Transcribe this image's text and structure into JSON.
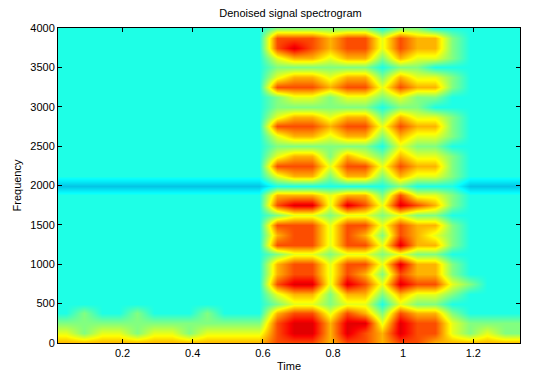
{
  "chart_data": {
    "type": "heatmap",
    "title": "Denoised signal spectrogram",
    "x_label": "Time",
    "y_label": "Frequency",
    "x": [
      0.04,
      0.09,
      0.14,
      0.19,
      0.24,
      0.29,
      0.34,
      0.39,
      0.44,
      0.49,
      0.54,
      0.59,
      0.64,
      0.69,
      0.74,
      0.79,
      0.84,
      0.89,
      0.94,
      0.99,
      1.04,
      1.09,
      1.14,
      1.19,
      1.24,
      1.29,
      1.34
    ],
    "y": [
      0,
      125,
      250,
      375,
      500,
      625,
      750,
      875,
      1000,
      1125,
      1250,
      1375,
      1500,
      1625,
      1750,
      1875,
      2000,
      2125,
      2250,
      2375,
      2500,
      2625,
      2750,
      2875,
      3000,
      3125,
      3250,
      3375,
      3500,
      3625,
      3750,
      3875,
      4000
    ],
    "z": [
      [
        7,
        7,
        7,
        7,
        7,
        7,
        7,
        7,
        7,
        7,
        7,
        7,
        8,
        8,
        8,
        7,
        8,
        8,
        7,
        8,
        8,
        7,
        7,
        7,
        7,
        7,
        7
      ],
      [
        6,
        5,
        6,
        6,
        5,
        6,
        6,
        5,
        6,
        6,
        6,
        6,
        8,
        9,
        9,
        7,
        9,
        8,
        7,
        9,
        8,
        8,
        6,
        5,
        6,
        5,
        5
      ],
      [
        5,
        5,
        5,
        5,
        5,
        5,
        5,
        5,
        5,
        5,
        5,
        5,
        8,
        9,
        9,
        7,
        9,
        9,
        6,
        9,
        8,
        8,
        6,
        5,
        5,
        5,
        5
      ],
      [
        4,
        5,
        4,
        4,
        5,
        4,
        4,
        4,
        5,
        4,
        4,
        4,
        7,
        8,
        8,
        6,
        8,
        7,
        5,
        8,
        7,
        7,
        5,
        4,
        4,
        4,
        4
      ],
      [
        4,
        4,
        4,
        4,
        4,
        4,
        4,
        4,
        4,
        4,
        4,
        4,
        5,
        6,
        6,
        5,
        6,
        6,
        4,
        6,
        5,
        5,
        4,
        4,
        4,
        4,
        4
      ],
      [
        4,
        4,
        4,
        4,
        4,
        4,
        4,
        4,
        4,
        4,
        4,
        4,
        6,
        7,
        7,
        5,
        7,
        7,
        5,
        7,
        6,
        6,
        5,
        4,
        4,
        4,
        4
      ],
      [
        4,
        4,
        4,
        4,
        4,
        4,
        4,
        4,
        4,
        4,
        4,
        4,
        8,
        9,
        9,
        6,
        9,
        8,
        6,
        9,
        8,
        8,
        6,
        5,
        4,
        4,
        4
      ],
      [
        4,
        4,
        4,
        4,
        4,
        4,
        4,
        4,
        4,
        4,
        4,
        4,
        7,
        8,
        8,
        6,
        8,
        7,
        5,
        8,
        7,
        7,
        5,
        4,
        4,
        4,
        4
      ],
      [
        4,
        4,
        4,
        4,
        4,
        4,
        4,
        4,
        4,
        4,
        4,
        4,
        7,
        8,
        8,
        6,
        8,
        8,
        6,
        9,
        7,
        7,
        5,
        4,
        4,
        4,
        4
      ],
      [
        4,
        4,
        4,
        4,
        4,
        4,
        4,
        4,
        4,
        4,
        4,
        4,
        5,
        6,
        6,
        5,
        6,
        6,
        5,
        6,
        5,
        5,
        4,
        4,
        4,
        4,
        4
      ],
      [
        4,
        4,
        4,
        4,
        4,
        4,
        4,
        4,
        4,
        4,
        4,
        4,
        8,
        8,
        8,
        6,
        8,
        8,
        6,
        9,
        7,
        7,
        5,
        4,
        4,
        4,
        4
      ],
      [
        4,
        4,
        4,
        4,
        4,
        4,
        4,
        4,
        4,
        4,
        4,
        4,
        7,
        8,
        8,
        6,
        8,
        7,
        5,
        8,
        7,
        6,
        5,
        4,
        4,
        4,
        4
      ],
      [
        4,
        4,
        4,
        4,
        4,
        4,
        4,
        4,
        4,
        4,
        4,
        4,
        8,
        8,
        8,
        6,
        8,
        8,
        6,
        8,
        7,
        7,
        5,
        4,
        4,
        4,
        4
      ],
      [
        4,
        4,
        4,
        4,
        4,
        4,
        4,
        4,
        4,
        4,
        4,
        4,
        5,
        6,
        6,
        5,
        6,
        6,
        5,
        6,
        5,
        5,
        4,
        4,
        4,
        4,
        4
      ],
      [
        4,
        4,
        4,
        4,
        4,
        4,
        4,
        4,
        4,
        4,
        4,
        4,
        8,
        9,
        9,
        6,
        9,
        8,
        6,
        9,
        8,
        7,
        5,
        4,
        4,
        4,
        4
      ],
      [
        4,
        4,
        4,
        4,
        4,
        4,
        4,
        4,
        4,
        4,
        4,
        4,
        7,
        7,
        7,
        6,
        7,
        7,
        5,
        8,
        6,
        6,
        5,
        4,
        4,
        4,
        4
      ],
      [
        3,
        3,
        3,
        3,
        3,
        3,
        3,
        3,
        3,
        3,
        3,
        3,
        4,
        4,
        4,
        4,
        4,
        4,
        4,
        5,
        4,
        4,
        4,
        3,
        3,
        3,
        3
      ],
      [
        4,
        4,
        4,
        4,
        4,
        4,
        4,
        4,
        4,
        4,
        4,
        4,
        6,
        7,
        7,
        5,
        7,
        7,
        5,
        7,
        6,
        6,
        5,
        4,
        4,
        4,
        4
      ],
      [
        4,
        4,
        4,
        4,
        4,
        4,
        4,
        4,
        4,
        4,
        4,
        4,
        8,
        8,
        8,
        6,
        8,
        8,
        6,
        8,
        7,
        7,
        5,
        4,
        4,
        4,
        4
      ],
      [
        4,
        4,
        4,
        4,
        4,
        4,
        4,
        4,
        4,
        4,
        4,
        4,
        6,
        7,
        7,
        5,
        7,
        6,
        5,
        7,
        6,
        6,
        5,
        4,
        4,
        4,
        4
      ],
      [
        4,
        4,
        4,
        4,
        4,
        4,
        4,
        4,
        4,
        4,
        4,
        4,
        5,
        5,
        5,
        5,
        5,
        5,
        4,
        6,
        5,
        5,
        4,
        4,
        4,
        4,
        4
      ],
      [
        4,
        4,
        4,
        4,
        4,
        4,
        4,
        4,
        4,
        4,
        4,
        4,
        6,
        7,
        7,
        6,
        7,
        7,
        5,
        7,
        6,
        6,
        5,
        4,
        4,
        4,
        4
      ],
      [
        4,
        4,
        4,
        4,
        4,
        4,
        4,
        4,
        4,
        4,
        4,
        4,
        8,
        8,
        8,
        7,
        8,
        8,
        6,
        8,
        7,
        7,
        5,
        4,
        4,
        4,
        4
      ],
      [
        4,
        4,
        4,
        4,
        4,
        4,
        4,
        4,
        4,
        4,
        4,
        4,
        6,
        7,
        7,
        6,
        7,
        7,
        5,
        7,
        6,
        6,
        5,
        4,
        4,
        4,
        4
      ],
      [
        4,
        4,
        4,
        4,
        4,
        4,
        4,
        4,
        4,
        4,
        4,
        4,
        5,
        5,
        5,
        5,
        5,
        5,
        4,
        5,
        5,
        4,
        4,
        4,
        4,
        4,
        4
      ],
      [
        4,
        4,
        4,
        4,
        4,
        4,
        4,
        4,
        4,
        4,
        4,
        4,
        5,
        6,
        6,
        5,
        6,
        6,
        5,
        6,
        5,
        5,
        4,
        4,
        4,
        4,
        4
      ],
      [
        4,
        4,
        4,
        4,
        4,
        4,
        4,
        4,
        4,
        4,
        4,
        4,
        8,
        8,
        8,
        7,
        8,
        8,
        6,
        8,
        7,
        7,
        5,
        4,
        4,
        4,
        4
      ],
      [
        4,
        4,
        4,
        4,
        4,
        4,
        4,
        4,
        4,
        4,
        4,
        4,
        6,
        7,
        7,
        6,
        7,
        7,
        5,
        7,
        6,
        6,
        5,
        4,
        4,
        4,
        4
      ],
      [
        4,
        4,
        4,
        4,
        4,
        4,
        4,
        4,
        4,
        4,
        4,
        4,
        5,
        5,
        5,
        5,
        5,
        5,
        4,
        5,
        5,
        4,
        4,
        4,
        4,
        4,
        4
      ],
      [
        4,
        4,
        4,
        4,
        4,
        4,
        4,
        4,
        4,
        4,
        4,
        4,
        6,
        7,
        7,
        6,
        7,
        7,
        5,
        7,
        6,
        6,
        5,
        4,
        4,
        4,
        4
      ],
      [
        4,
        4,
        4,
        4,
        4,
        4,
        4,
        4,
        4,
        4,
        4,
        4,
        8,
        9,
        8,
        7,
        8,
        8,
        6,
        8,
        7,
        7,
        5,
        4,
        4,
        4,
        4
      ],
      [
        4,
        4,
        4,
        4,
        4,
        4,
        4,
        4,
        4,
        4,
        4,
        4,
        8,
        8,
        8,
        7,
        8,
        8,
        6,
        8,
        7,
        7,
        5,
        4,
        4,
        4,
        4
      ],
      [
        4,
        4,
        4,
        4,
        4,
        4,
        4,
        4,
        4,
        4,
        4,
        4,
        5,
        5,
        5,
        5,
        5,
        5,
        4,
        5,
        5,
        4,
        4,
        4,
        4,
        4,
        4
      ]
    ],
    "zlim": [
      0,
      10
    ],
    "xlim": [
      0.016,
      1.333
    ],
    "ylim": [
      0,
      4000
    ],
    "xticks": [
      0.2,
      0.4,
      0.6,
      0.8,
      1,
      1.2
    ],
    "yticks": [
      0,
      500,
      1000,
      1500,
      2000,
      2500,
      3000,
      3500,
      4000
    ],
    "grid": false
  }
}
